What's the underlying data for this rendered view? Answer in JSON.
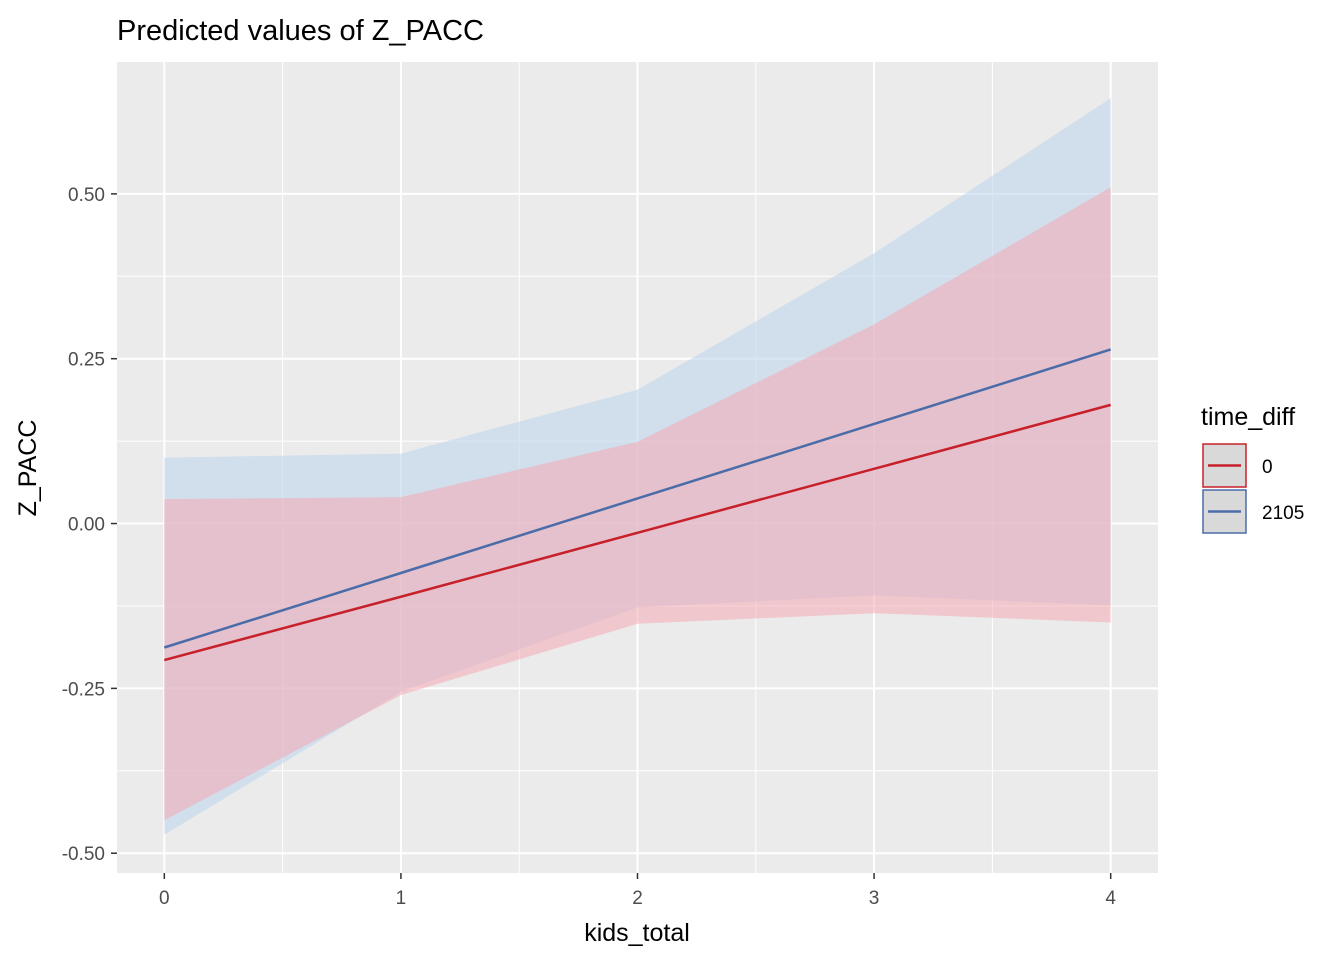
{
  "chart_data": {
    "type": "line",
    "title": "Predicted values of Z_PACC",
    "xlabel": "kids_total",
    "ylabel": "Z_PACC",
    "x": [
      0,
      1,
      2,
      3,
      4
    ],
    "xticks": [
      "0",
      "1",
      "2",
      "3",
      "4"
    ],
    "yticks": [
      {
        "value": -0.5,
        "label": "-0.50"
      },
      {
        "value": -0.25,
        "label": "-0.25"
      },
      {
        "value": 0,
        "label": "0.00"
      },
      {
        "value": 0.25,
        "label": "0.25"
      },
      {
        "value": 0.5,
        "label": "0.50"
      }
    ],
    "xlim": [
      -0.2,
      4.2
    ],
    "ylim": [
      -0.53,
      0.7
    ],
    "grid": true,
    "legend": {
      "title": "time_diff",
      "position": "right"
    },
    "series": [
      {
        "name": "0",
        "color": "#C8202A",
        "fill": "#F4AAB4",
        "values": [
          -0.207,
          -0.111,
          -0.014,
          0.083,
          0.18
        ],
        "lower": [
          -0.45,
          -0.26,
          -0.152,
          -0.136,
          -0.15
        ],
        "upper": [
          0.037,
          0.04,
          0.124,
          0.302,
          0.51
        ]
      },
      {
        "name": "2105",
        "color": "#4A6CA8",
        "fill": "#BFD6EC",
        "values": [
          -0.188,
          -0.075,
          0.038,
          0.151,
          0.264
        ],
        "lower": [
          -0.472,
          -0.255,
          -0.127,
          -0.109,
          -0.124
        ],
        "upper": [
          0.1,
          0.106,
          0.203,
          0.41,
          0.645
        ]
      }
    ]
  }
}
